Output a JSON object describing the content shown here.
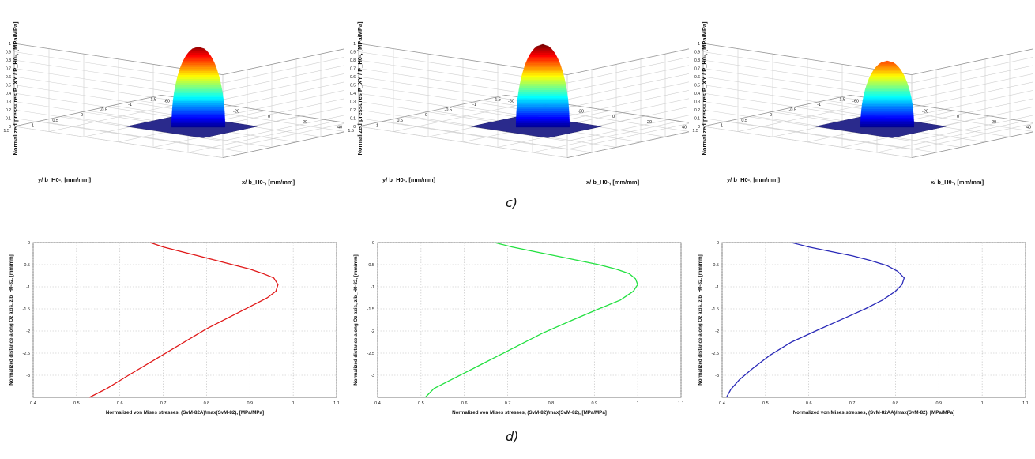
{
  "captions": {
    "top": "c)",
    "bottom": "d)"
  },
  "surface_panels": [
    {
      "zlabel": "Normalized pressures P_XY / P_H0-, [MPa/MPa]",
      "xlabel": "x/ b_H0-, [mm/mm]",
      "ylabel": "y/ b_H0-, [mm/mm]",
      "zticks": [
        "0",
        "0.1",
        "0.2",
        "0.3",
        "0.4",
        "0.5",
        "0.6",
        "0.7",
        "0.8",
        "0.9",
        "1"
      ],
      "xticks": [
        "-60",
        "-40",
        "-20",
        "0",
        "20",
        "40",
        "60"
      ],
      "yticks": [
        "1.5",
        "1",
        "0.5",
        "0",
        "-0.5",
        "-1",
        "-1.5"
      ],
      "peak": 0.97
    },
    {
      "zlabel": "Normalized pressures P_XY / P_H0-, [MPa/MPa]",
      "xlabel": "x/ b_H0-, [mm/mm]",
      "ylabel": "y/ b_H0-, [mm/mm]",
      "zticks": [
        "0",
        "0.1",
        "0.2",
        "0.3",
        "0.4",
        "0.5",
        "0.6",
        "0.7",
        "0.8",
        "0.9",
        "1"
      ],
      "xticks": [
        "-60",
        "-40",
        "-20",
        "0",
        "20",
        "40",
        "60"
      ],
      "yticks": [
        "1.5",
        "1",
        "0.5",
        "0",
        "-0.5",
        "-1",
        "-1.5"
      ],
      "peak": 1.0
    },
    {
      "zlabel": "Normalized pressures P_XY / P_H0-, [MPa/MPa]",
      "xlabel": "x/ b_H0-, [mm/mm]",
      "ylabel": "y/ b_H0-, [mm/mm]",
      "zticks": [
        "0",
        "0.1",
        "0.2",
        "0.3",
        "0.4",
        "0.5",
        "0.6",
        "0.7",
        "0.8",
        "0.9",
        "1"
      ],
      "xticks": [
        "-60",
        "-40",
        "-20",
        "0",
        "20",
        "40",
        "60"
      ],
      "yticks": [
        "1.5",
        "1",
        "0.5",
        "0",
        "-0.5",
        "-1",
        "-1.5"
      ],
      "peak": 0.8
    }
  ],
  "chart_data": [
    {
      "type": "line",
      "xlabel": "Normalized von Mises stresses, (SvM-82A)/max(SvM-82), [MPa/MPa]",
      "ylabel": "Normalized distance along Oz axis, z/b_H0-82, [mm/mm]",
      "xlim": [
        0.4,
        1.1
      ],
      "ylim": [
        -3.5,
        0
      ],
      "xticks": [
        "0.4",
        "0.5",
        "0.6",
        "0.7",
        "0.8",
        "0.9",
        "1",
        "1.1"
      ],
      "yticks": [
        "0",
        "-0.5",
        "-1",
        "-1.5",
        "-2",
        "-2.5",
        "-3"
      ],
      "grid": true,
      "color": "#e01818",
      "series": [
        {
          "x": [
            0.67,
            0.7,
            0.74,
            0.78,
            0.82,
            0.86,
            0.9,
            0.93,
            0.955,
            0.965,
            0.96,
            0.94,
            0.9,
            0.86,
            0.8,
            0.74,
            0.68,
            0.62,
            0.57,
            0.53
          ],
          "y": [
            0,
            -0.1,
            -0.2,
            -0.3,
            -0.4,
            -0.5,
            -0.6,
            -0.7,
            -0.8,
            -0.95,
            -1.1,
            -1.25,
            -1.45,
            -1.65,
            -1.95,
            -2.3,
            -2.65,
            -3.0,
            -3.3,
            -3.5
          ]
        }
      ]
    },
    {
      "type": "line",
      "xlabel": "Normalized von Mises stresses, (SvM-82)/max(SvM-82), [MPa/MPa]",
      "ylabel": "Normalized distance along Oz axis, z/b_H0-82, [mm/mm]",
      "xlim": [
        0.4,
        1.1
      ],
      "ylim": [
        -3.5,
        0
      ],
      "xticks": [
        "0.4",
        "0.5",
        "0.6",
        "0.7",
        "0.8",
        "0.9",
        "1",
        "1.1"
      ],
      "yticks": [
        "0",
        "-0.5",
        "-1",
        "-1.5",
        "-2",
        "-2.5",
        "-3"
      ],
      "grid": true,
      "color": "#22e040",
      "series": [
        {
          "x": [
            0.67,
            0.71,
            0.76,
            0.81,
            0.86,
            0.91,
            0.95,
            0.98,
            0.995,
            1.0,
            0.99,
            0.96,
            0.91,
            0.85,
            0.78,
            0.71,
            0.64,
            0.58,
            0.53,
            0.51
          ],
          "y": [
            0,
            -0.1,
            -0.2,
            -0.3,
            -0.4,
            -0.5,
            -0.6,
            -0.7,
            -0.82,
            -0.95,
            -1.1,
            -1.3,
            -1.5,
            -1.75,
            -2.05,
            -2.4,
            -2.75,
            -3.05,
            -3.3,
            -3.5
          ]
        }
      ]
    },
    {
      "type": "line",
      "xlabel": "Normalized von Mises stresses, (SvM-82AA)/max(SvM-82), [MPa/MPa]",
      "ylabel": "Normalized distance along Oz axis, z/b_H0-82, [mm/mm]",
      "xlim": [
        0.4,
        1.1
      ],
      "ylim": [
        -3.5,
        0
      ],
      "xticks": [
        "0.4",
        "0.5",
        "0.6",
        "0.7",
        "0.8",
        "0.9",
        "1",
        "1.1"
      ],
      "yticks": [
        "0",
        "-0.5",
        "-1",
        "-1.5",
        "-2",
        "-2.5",
        "-3"
      ],
      "grid": true,
      "color": "#2a2ab8",
      "series": [
        {
          "x": [
            0.56,
            0.6,
            0.65,
            0.7,
            0.74,
            0.78,
            0.805,
            0.82,
            0.815,
            0.8,
            0.77,
            0.73,
            0.68,
            0.62,
            0.56,
            0.51,
            0.47,
            0.44,
            0.42,
            0.41
          ],
          "y": [
            0,
            -0.1,
            -0.2,
            -0.3,
            -0.4,
            -0.52,
            -0.65,
            -0.8,
            -0.95,
            -1.1,
            -1.3,
            -1.5,
            -1.72,
            -1.98,
            -2.25,
            -2.55,
            -2.85,
            -3.1,
            -3.32,
            -3.5
          ]
        }
      ]
    }
  ]
}
